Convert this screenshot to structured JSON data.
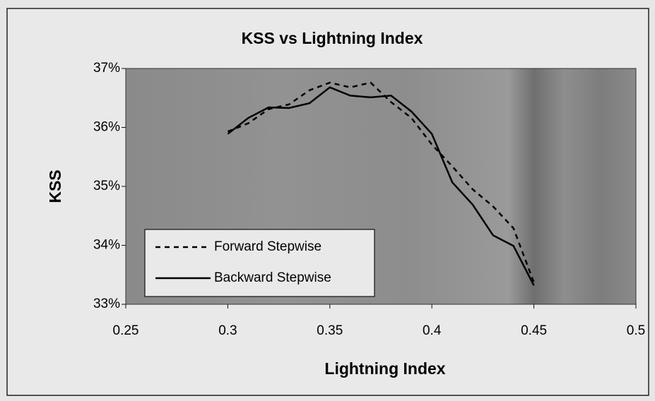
{
  "chart_data": {
    "type": "line",
    "title": "KSS vs Lightning Index",
    "xlabel": "Lightning Index",
    "ylabel": "KSS",
    "x": [
      0.3,
      0.31,
      0.32,
      0.33,
      0.34,
      0.35,
      0.36,
      0.37,
      0.38,
      0.39,
      0.4,
      0.41,
      0.42,
      0.43,
      0.44,
      0.45
    ],
    "series": [
      {
        "name": "Forward Stepwise",
        "color": "#000000",
        "dash": "dashed",
        "values": [
          35.93,
          36.07,
          36.31,
          36.39,
          36.63,
          36.76,
          36.68,
          36.76,
          36.43,
          36.16,
          35.71,
          35.34,
          34.95,
          34.66,
          34.29,
          33.37
        ]
      },
      {
        "name": "Backward Stepwise",
        "color": "#000000",
        "dash": "solid",
        "values": [
          35.89,
          36.16,
          36.34,
          36.33,
          36.41,
          36.68,
          36.54,
          36.51,
          36.54,
          36.27,
          35.89,
          35.07,
          34.69,
          34.17,
          33.99,
          33.32
        ]
      }
    ],
    "xlim": [
      0.25,
      0.5
    ],
    "xticks": [
      0.25,
      0.3,
      0.35,
      0.4,
      0.45,
      0.5
    ],
    "ylim": [
      33,
      37
    ],
    "yticks": [
      {
        "value": 33,
        "label": "33%"
      },
      {
        "value": 34,
        "label": "34%"
      },
      {
        "value": 35,
        "label": "35%"
      },
      {
        "value": 36,
        "label": "36%"
      },
      {
        "value": 37,
        "label": "37%"
      }
    ],
    "legend": "lower left",
    "grid": false
  }
}
